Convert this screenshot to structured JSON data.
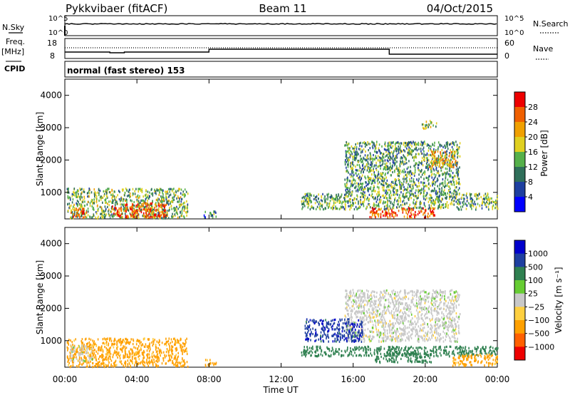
{
  "header": {
    "radar": "Pykkvibaer (fitACF)",
    "beam": "Beam 11",
    "date": "04/Oct/2015"
  },
  "status_panels": {
    "nsky_label": "N.Sky",
    "nsearch_label": "N.Search",
    "nsky_ticks": [
      "10^5",
      "10^0"
    ],
    "nsearch_ticks": [
      "10^5",
      "10^0"
    ],
    "freq_label_1": "Freq.",
    "freq_label_2": "[MHz]",
    "freq_ticks": [
      "18",
      "8"
    ],
    "nave_label": "Nave",
    "nave_ticks": [
      "60",
      "0"
    ],
    "cpid_label": "CPID",
    "cpid_value": "normal (fast stereo) 153"
  },
  "colors": {
    "power_scale": [
      "#0000ff",
      "#1e3fa0",
      "#2f6f5a",
      "#55b04a",
      "#e0d020",
      "#f0a000",
      "#f06000",
      "#ee0000"
    ],
    "velocity_scale": [
      "#ee0000",
      "#ff6000",
      "#ffa000",
      "#ffd040",
      "#c8c8c8",
      "#66cc33",
      "#2f8050",
      "#1e3fa0",
      "#0000cc"
    ]
  },
  "chart_data": [
    {
      "type": "heatmap",
      "title": "",
      "xlabel": "",
      "ylabel": "Slant Range [km]",
      "x_ticks": [
        "00:00",
        "04:00",
        "08:00",
        "12:00",
        "16:00",
        "20:00",
        "00:00"
      ],
      "x_range_hours": [
        0,
        24
      ],
      "y_ticks": [
        "1000",
        "2000",
        "3000",
        "4000"
      ],
      "ylim": [
        180,
        4500
      ],
      "colorbar": {
        "label": "Power [dB]",
        "ticks": [
          "4",
          "8",
          "12",
          "16",
          "20",
          "24",
          "28"
        ],
        "range": [
          0,
          32
        ]
      },
      "scatter_regions": [
        {
          "t_start": 0.1,
          "t_end": 6.8,
          "r_min": 220,
          "r_max": 1150,
          "value": 14
        },
        {
          "t_start": 2.6,
          "t_end": 5.6,
          "r_min": 250,
          "r_max": 700,
          "value": 27
        },
        {
          "t_start": 0.3,
          "t_end": 1.2,
          "r_min": 250,
          "r_max": 550,
          "value": 26
        },
        {
          "t_start": 7.7,
          "t_end": 8.4,
          "r_min": 250,
          "r_max": 450,
          "value": 10
        },
        {
          "t_start": 13.1,
          "t_end": 24.0,
          "r_min": 500,
          "r_max": 1000,
          "value": 13
        },
        {
          "t_start": 16.9,
          "t_end": 20.5,
          "r_min": 250,
          "r_max": 550,
          "value": 27
        },
        {
          "t_start": 15.5,
          "t_end": 21.9,
          "r_min": 1000,
          "r_max": 2600,
          "value": 12
        },
        {
          "t_start": 20.2,
          "t_end": 21.7,
          "r_min": 1800,
          "r_max": 2300,
          "value": 21
        },
        {
          "t_start": 19.8,
          "t_end": 20.6,
          "r_min": 3000,
          "r_max": 3250,
          "value": 15
        }
      ]
    },
    {
      "type": "heatmap",
      "title": "",
      "xlabel": "Time UT",
      "ylabel": "Slant Range [km]",
      "x_ticks": [
        "00:00",
        "04:00",
        "08:00",
        "12:00",
        "16:00",
        "20:00",
        "00:00"
      ],
      "x_range_hours": [
        0,
        24
      ],
      "y_ticks": [
        "1000",
        "2000",
        "3000",
        "4000"
      ],
      "ylim": [
        180,
        4500
      ],
      "colorbar": {
        "label": "Velocity [m s⁻¹]",
        "ticks": [
          "1000",
          "500",
          "100",
          "25",
          "−25",
          "−100",
          "−500",
          "−1000"
        ]
      },
      "scatter_regions": [
        {
          "t_start": 0.1,
          "t_end": 6.8,
          "r_min": 220,
          "r_max": 1100,
          "value": -150
        },
        {
          "t_start": 0.3,
          "t_end": 1.5,
          "r_min": 400,
          "r_max": 900,
          "value": 0
        },
        {
          "t_start": 7.7,
          "t_end": 8.4,
          "r_min": 250,
          "r_max": 450,
          "value": -150
        },
        {
          "t_start": 13.1,
          "t_end": 24.0,
          "r_min": 550,
          "r_max": 850,
          "value": 300
        },
        {
          "t_start": 17.2,
          "t_end": 20.3,
          "r_min": 350,
          "r_max": 650,
          "value": 300
        },
        {
          "t_start": 15.5,
          "t_end": 21.9,
          "r_min": 1000,
          "r_max": 2600,
          "value": 0
        },
        {
          "t_start": 13.3,
          "t_end": 16.5,
          "r_min": 1000,
          "r_max": 1700,
          "value": 800
        },
        {
          "t_start": 21.5,
          "t_end": 24.0,
          "r_min": 250,
          "r_max": 600,
          "value": -150
        }
      ]
    }
  ]
}
